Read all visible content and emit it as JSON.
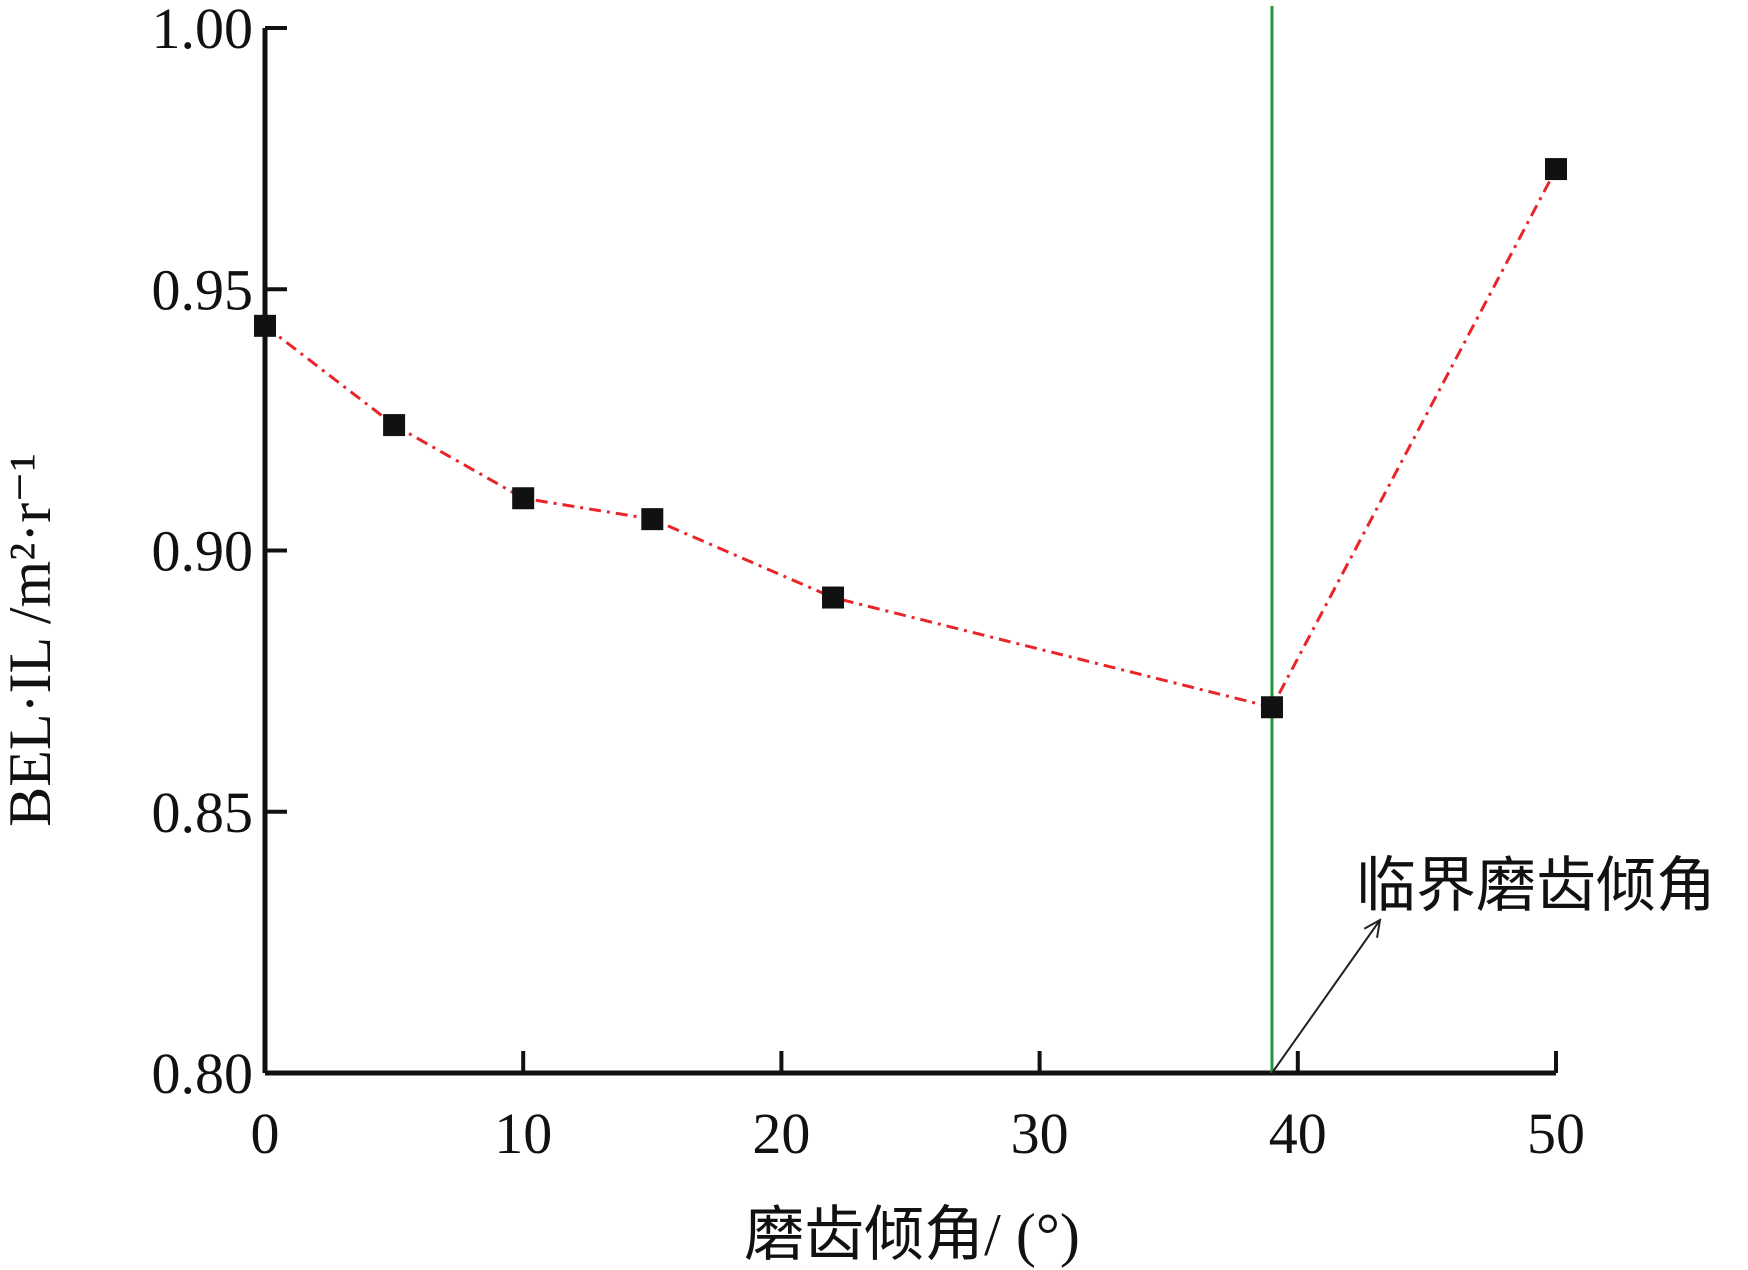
{
  "chart_data": {
    "type": "line",
    "title": "",
    "xlabel": "磨齿倾角/ (°)",
    "ylabel": "BEL·IL /m²·r⁻¹",
    "xlim": [
      0,
      50
    ],
    "ylim": [
      0.8,
      1.0
    ],
    "xticks": [
      0,
      10,
      20,
      30,
      40,
      50
    ],
    "xtick_labels": [
      "0",
      "10",
      "20",
      "30",
      "40",
      "50"
    ],
    "yticks": [
      0.8,
      0.85,
      0.9,
      0.95,
      1.0
    ],
    "ytick_labels": [
      "0.80",
      "0.85",
      "0.90",
      "0.95",
      "1.00"
    ],
    "grid": false,
    "series": [
      {
        "color": "#e8262a",
        "marker_color": "#111111",
        "line_style": "dash-dot",
        "x": [
          0,
          5,
          10,
          15,
          22,
          39,
          50
        ],
        "y": [
          0.943,
          0.924,
          0.91,
          0.906,
          0.891,
          0.87,
          0.973
        ]
      }
    ],
    "reference_line": {
      "x": 39,
      "color": "#1f9a3a"
    },
    "annotation": {
      "text": "临界磨齿倾角",
      "points_to_x": 39,
      "points_to_y": 0.8
    }
  }
}
